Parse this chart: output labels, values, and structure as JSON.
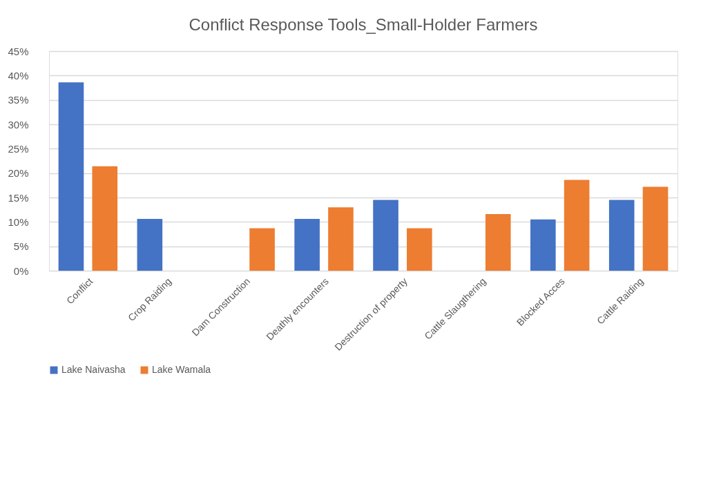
{
  "chart_data": {
    "type": "bar",
    "title": "Conflict Response Tools_Small-Holder Farmers",
    "categories": [
      "Conflict",
      "Crop Raiding",
      "Dam Construction",
      "Deathly encounters",
      "Destruction of property",
      "Cattle Slaugthering",
      "Blocked Acces",
      "Cattle Raiding"
    ],
    "series": [
      {
        "name": "Lake Naivasha",
        "color": "#4472c4",
        "values": [
          38.6,
          10.6,
          0,
          10.6,
          14.5,
          0,
          10.5,
          14.5
        ]
      },
      {
        "name": "Lake Wamala",
        "color": "#ed7d31",
        "values": [
          21.4,
          0,
          8.7,
          13.0,
          8.7,
          11.6,
          18.6,
          17.2
        ]
      }
    ],
    "ylim": [
      0,
      45
    ],
    "yticks": [
      {
        "value": 0,
        "label": "0%"
      },
      {
        "value": 5,
        "label": "5%"
      },
      {
        "value": 10,
        "label": "10%"
      },
      {
        "value": 15,
        "label": "15%"
      },
      {
        "value": 20,
        "label": "20%"
      },
      {
        "value": 25,
        "label": "25%"
      },
      {
        "value": 30,
        "label": "30%"
      },
      {
        "value": 35,
        "label": "35%"
      },
      {
        "value": 40,
        "label": "40%"
      },
      {
        "value": 45,
        "label": "45%"
      }
    ],
    "grid": "y",
    "legend": "bottom"
  }
}
